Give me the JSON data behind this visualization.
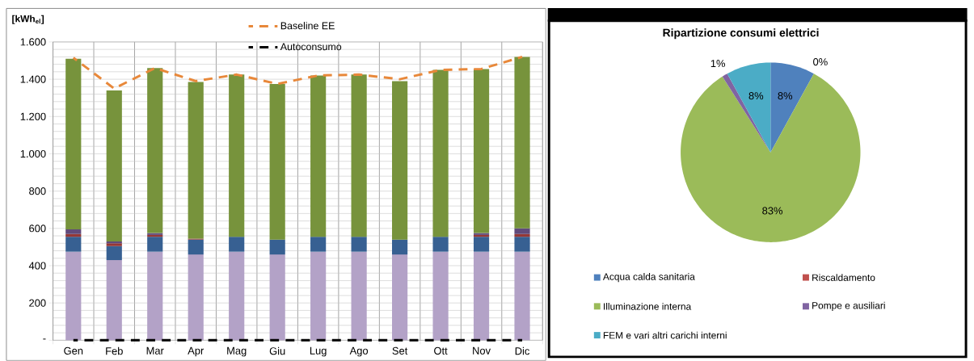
{
  "chart_data": [
    {
      "type": "bar",
      "stacked": true,
      "ylabel": "[kWh$_{el}$]",
      "categories": [
        "Gen",
        "Feb",
        "Mar",
        "Apr",
        "Mag",
        "Giu",
        "Lug",
        "Ago",
        "Set",
        "Ott",
        "Nov",
        "Dic"
      ],
      "ylim": [
        0,
        1600
      ],
      "yticks": [
        {
          "value": 0,
          "label": "-"
        },
        200,
        400,
        600,
        800,
        {
          "value": 1000,
          "label": "1.000"
        },
        {
          "value": 1200,
          "label": "1.200"
        },
        {
          "value": 1400,
          "label": "1.400"
        },
        {
          "value": 1600,
          "label": "1.600"
        }
      ],
      "grid": true,
      "legend": "top",
      "series": [
        {
          "color": "#b3a2c7",
          "values": [
            475,
            430,
            475,
            460,
            475,
            460,
            475,
            475,
            460,
            475,
            475,
            475
          ]
        },
        {
          "color": "#376092",
          "values": [
            80,
            75,
            80,
            80,
            80,
            80,
            80,
            80,
            80,
            80,
            80,
            80
          ]
        },
        {
          "color": "#953735",
          "values": [
            15,
            15,
            10,
            5,
            0,
            0,
            0,
            0,
            0,
            0,
            10,
            15
          ]
        },
        {
          "color": "#604a7b",
          "values": [
            25,
            10,
            10,
            0,
            0,
            0,
            0,
            0,
            0,
            0,
            10,
            30
          ]
        },
        {
          "color": "#77933c",
          "values": [
            915,
            810,
            885,
            840,
            870,
            835,
            865,
            870,
            850,
            895,
            880,
            920
          ]
        },
        {
          "name": "Baseline EE",
          "type": "line",
          "line_style": "dashed",
          "color": "#e8883a",
          "values": [
            1515,
            1350,
            1460,
            1390,
            1425,
            1375,
            1420,
            1425,
            1400,
            1450,
            1455,
            1520
          ]
        },
        {
          "name": "Autoconsumo",
          "type": "line",
          "line_style": "dashed",
          "color": "#000000",
          "values": [
            0,
            0,
            0,
            0,
            0,
            0,
            0,
            0,
            0,
            0,
            0,
            0
          ]
        }
      ]
    },
    {
      "type": "pie",
      "title": "Ripartizione consumi elettrici",
      "categories": [
        "Acqua calda sanitaria",
        "Riscaldamento",
        "Illuminazione interna",
        "Pompe e ausiliari",
        "FEM e vari altri carichi interni"
      ],
      "values": [
        8,
        0,
        83,
        1,
        8
      ],
      "colors": [
        "#4f81bd",
        "#c0504d",
        "#9bbb59",
        "#8064a2",
        "#4bacc6"
      ],
      "value_labels": [
        "8%",
        "0%",
        "83%",
        "1%",
        "8%"
      ],
      "legend": "bottom"
    }
  ]
}
